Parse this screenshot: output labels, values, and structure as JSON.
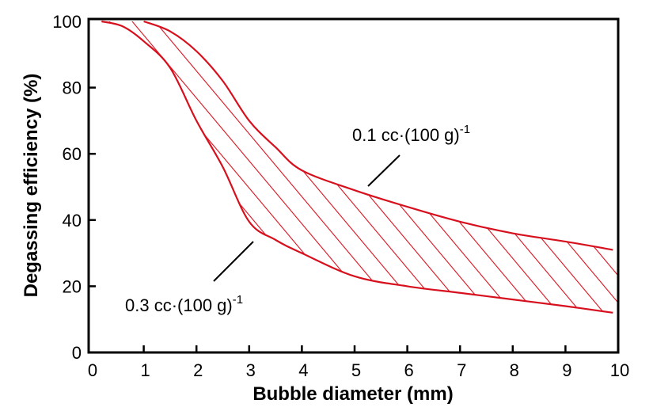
{
  "chart_data": {
    "type": "area",
    "title": "",
    "xlabel": "Bubble diameter (mm)",
    "ylabel": "Degassing efficiency (%)",
    "xlim": [
      0,
      10
    ],
    "ylim": [
      0,
      100
    ],
    "xticks": [
      0,
      1,
      2,
      3,
      4,
      5,
      6,
      7,
      8,
      9,
      10
    ],
    "yticks": [
      0,
      20,
      40,
      60,
      80,
      100
    ],
    "grid": false,
    "color": "#d7101e",
    "fill": "hatched band between the two curves",
    "series": [
      {
        "name": "0.1 cc·(100 g)-1",
        "x": [
          1.0,
          1.5,
          2.0,
          2.5,
          3.0,
          3.5,
          4.0,
          5.0,
          6.0,
          7.0,
          8.0,
          9.0,
          9.9
        ],
        "y": [
          100,
          97,
          91,
          82,
          70,
          62,
          55,
          49,
          44,
          39.5,
          36,
          33.5,
          31
        ]
      },
      {
        "name": "0.3 cc·(100 g)-1",
        "x": [
          0.2,
          0.6,
          1.0,
          1.5,
          2.0,
          2.5,
          3.0,
          3.5,
          4.0,
          5.0,
          6.0,
          7.0,
          8.0,
          9.0,
          9.9
        ],
        "y": [
          100,
          98.5,
          94,
          86,
          70,
          56,
          39.5,
          34,
          30,
          23,
          20,
          18,
          16,
          14,
          12
        ]
      }
    ],
    "annotations": [
      {
        "text": "0.1 cc·(100 g)",
        "sup": "-1"
      },
      {
        "text": "0.3 cc·(100 g)",
        "sup": "-1"
      }
    ]
  }
}
